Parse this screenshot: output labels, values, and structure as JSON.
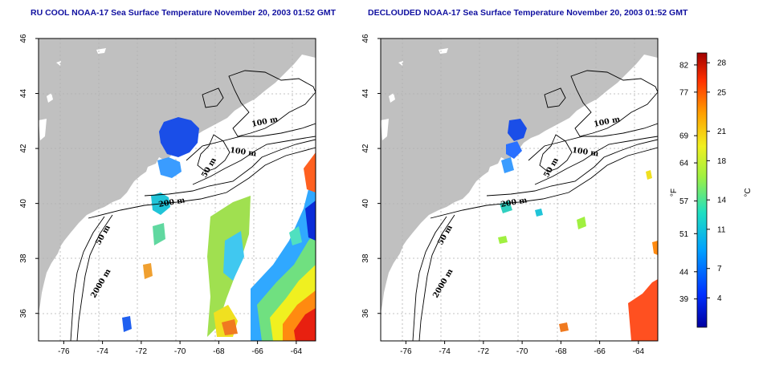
{
  "panels": [
    {
      "title": "RU COOL NOAA-17 Sea Surface Temperature November 20, 2003 01:52 GMT"
    },
    {
      "title": "DECLOUDED NOAA-17 Sea Surface Temperature November 20, 2003 01:52 GMT"
    }
  ],
  "axes": {
    "x_ticks": [
      -76,
      -74,
      -72,
      -70,
      -68,
      -66,
      -64
    ],
    "x_tick_labels": [
      "-76",
      "-74",
      "-72",
      "-70",
      "-68",
      "-66",
      "-64"
    ],
    "xlim": [
      -77.3,
      -63
    ],
    "y_ticks": [
      36,
      38,
      40,
      42,
      44,
      46
    ],
    "y_tick_labels": [
      "36",
      "38",
      "40",
      "42",
      "44",
      "46"
    ],
    "ylim": [
      35,
      46
    ]
  },
  "contour_labels": [
    "100 m",
    "100 m",
    "50 m",
    "200 m",
    "50 m",
    "2000 m"
  ],
  "colorbar": {
    "fahrenheit_ticks": [
      "82",
      "77",
      "69",
      "64",
      "57",
      "51",
      "44",
      "39"
    ],
    "fahrenheit_values": [
      82,
      77,
      69,
      64,
      57,
      51,
      44,
      39
    ],
    "celsius_ticks": [
      "28",
      "25",
      "21",
      "18",
      "14",
      "11",
      "7",
      "4"
    ],
    "celsius_values": [
      28,
      25,
      21,
      18,
      14,
      11,
      7,
      4
    ],
    "range_c": [
      1,
      29
    ],
    "unit_f": "°F",
    "unit_c": "°C",
    "colors": [
      "#0000a0",
      "#0030ff",
      "#00a0ff",
      "#20e0c0",
      "#a0f040",
      "#f0f020",
      "#ffa000",
      "#ff3000",
      "#a00000"
    ]
  },
  "colors": {
    "land": "#c0c0c0",
    "title": "#1010a0",
    "grid": "#b0b0b0",
    "contour": "#000000"
  }
}
